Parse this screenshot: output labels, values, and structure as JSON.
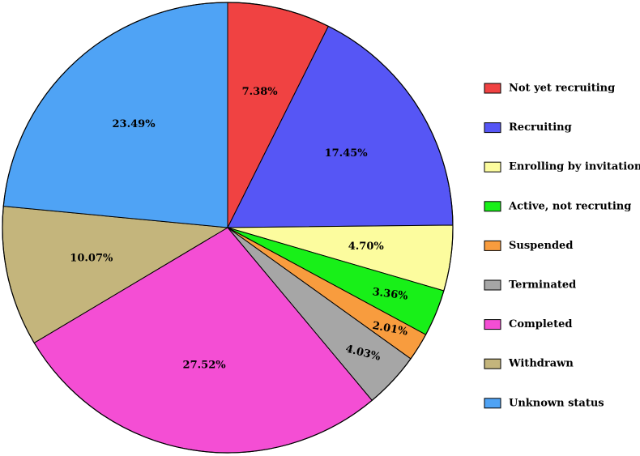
{
  "chart_data": {
    "type": "pie",
    "title": "",
    "legend_position": "right",
    "start_angle_deg": 0,
    "direction": "clockwise",
    "slices": [
      {
        "name": "Not yet recruiting",
        "value": 7.38,
        "label": "7.38%",
        "color": "#f04242"
      },
      {
        "name": "Recruiting",
        "value": 17.45,
        "label": "17.45%",
        "color": "#5656f5"
      },
      {
        "name": "Enrolling by invitation",
        "value": 4.7,
        "label": "4.70%",
        "color": "#fcfc9e"
      },
      {
        "name": "Active, not recruting",
        "value": 3.36,
        "label": "3.36%",
        "color": "#18f018"
      },
      {
        "name": "Suspended",
        "value": 2.01,
        "label": "2.01%",
        "color": "#f89c3e"
      },
      {
        "name": "Terminated",
        "value": 4.03,
        "label": "4.03%",
        "color": "#a6a6a6"
      },
      {
        "name": "Completed",
        "value": 27.52,
        "label": "27.52%",
        "color": "#f44ed4"
      },
      {
        "name": "Withdrawn",
        "value": 10.07,
        "label": "10.07%",
        "color": "#c4b57c"
      },
      {
        "name": "Unknown status",
        "value": 23.49,
        "label": "23.49%",
        "color": "#4fa3f5"
      }
    ]
  }
}
